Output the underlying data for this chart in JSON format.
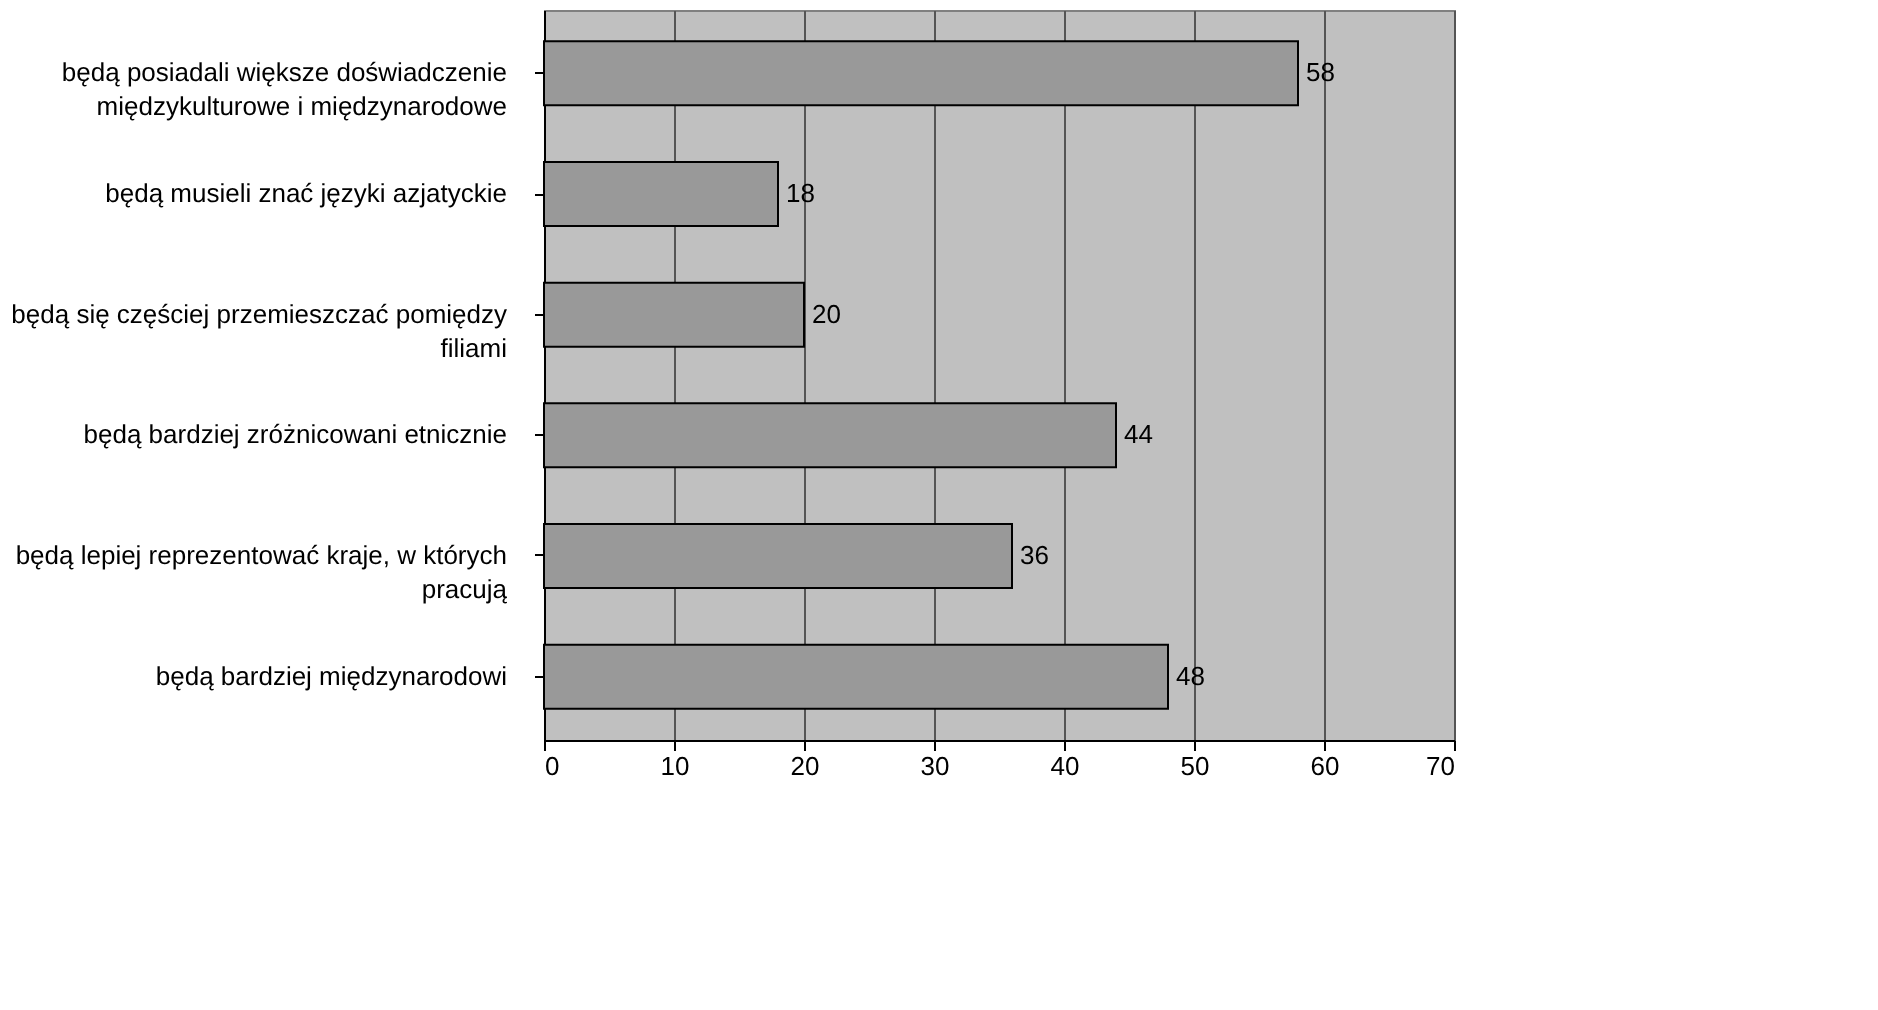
{
  "chart_data": {
    "type": "bar",
    "orientation": "horizontal",
    "categories": [
      "będą posiadali większe doświadczenie międzykulturowe i międzynarodowe",
      "będą musieli znać języki azjatyckie",
      "będą się częściej przemieszczać pomiędzy filiami",
      "będą bardziej zróżnicowani etnicznie",
      "będą lepiej reprezentować kraje, w których pracują",
      "będą bardziej międzynarodowi"
    ],
    "values": [
      58,
      18,
      20,
      44,
      36,
      48
    ],
    "color": "#999999",
    "xlim": [
      0,
      70
    ],
    "xticks": [
      0,
      10,
      20,
      30,
      40,
      50,
      60,
      70
    ],
    "grid": "x",
    "data_labels": true
  }
}
